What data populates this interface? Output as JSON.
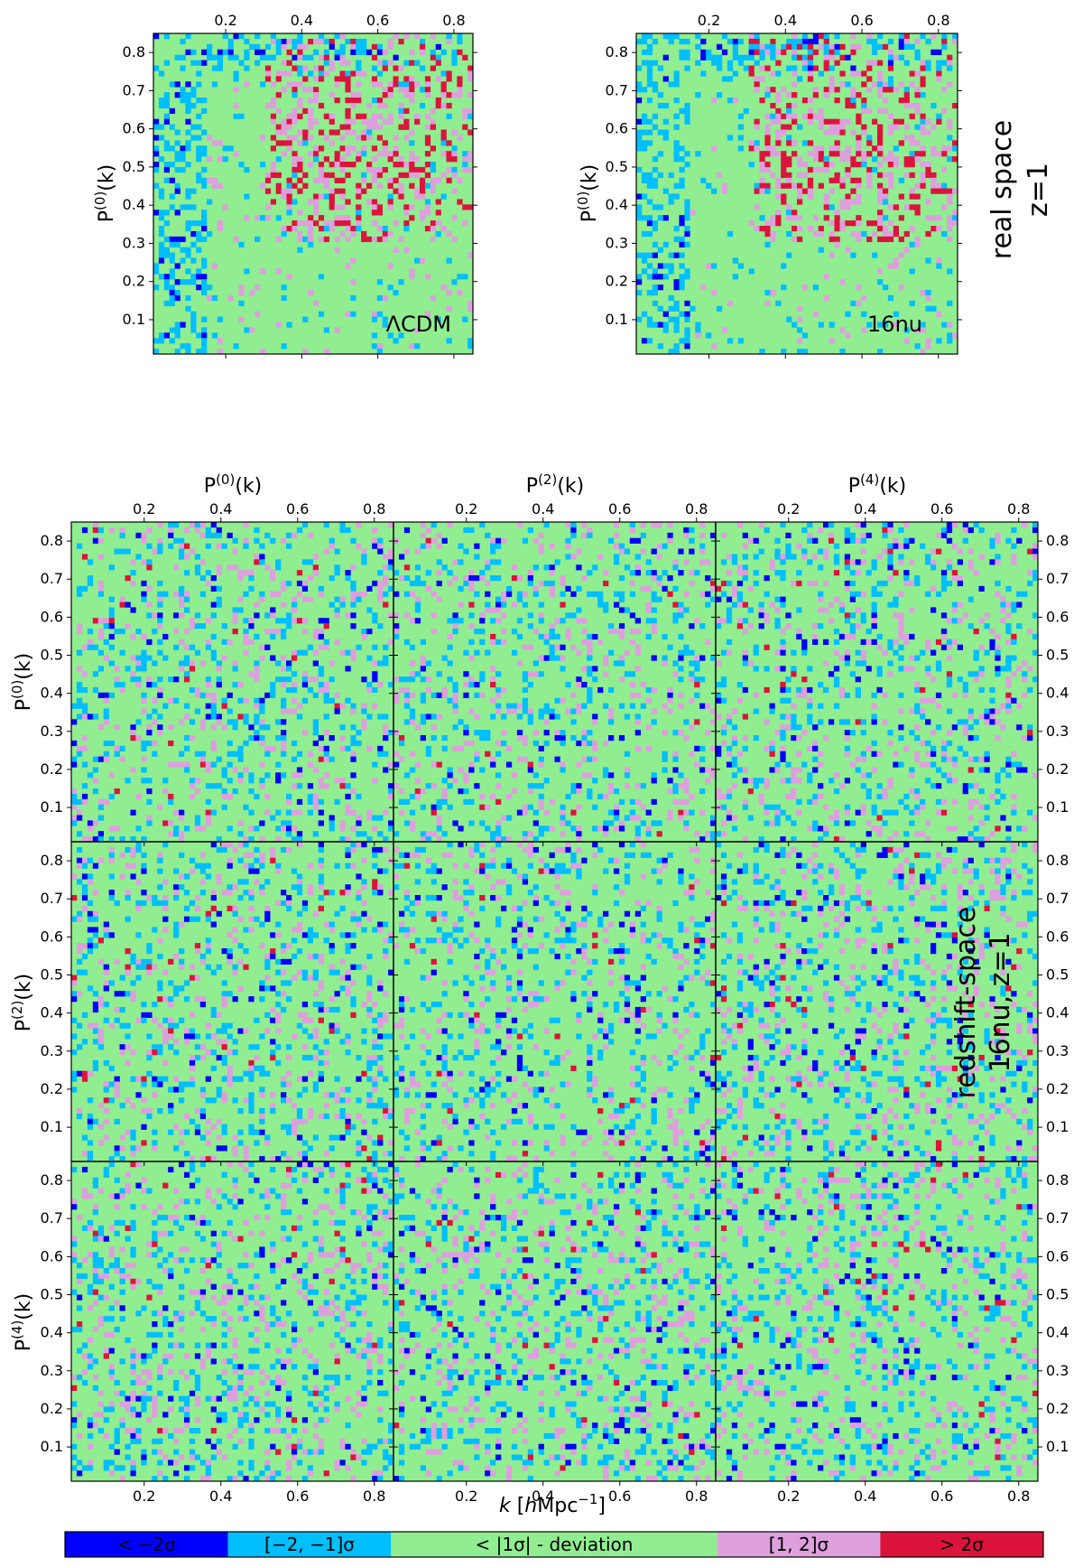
{
  "chart_data": [
    {
      "type": "heatmap",
      "panel": "real-space-lcdm",
      "annotation": "ΛCDM",
      "ylabel": "P^(0)(k)",
      "x_ticks": [
        0.2,
        0.4,
        0.6,
        0.8
      ],
      "y_ticks": [
        0.1,
        0.2,
        0.3,
        0.4,
        0.5,
        0.6,
        0.7,
        0.8
      ],
      "xlim": [
        0.01,
        0.85
      ],
      "ylim": [
        0.85,
        0.01
      ],
      "hot_region": {
        "x_range": [
          0.3,
          0.85
        ],
        "y_range": [
          0.3,
          0.85
        ],
        "peak": [
          0.55,
          0.52
        ]
      }
    },
    {
      "type": "heatmap",
      "panel": "real-space-16nu",
      "annotation": "16nu",
      "ylabel": "P^(0)(k)",
      "x_ticks": [
        0.2,
        0.4,
        0.6,
        0.8
      ],
      "y_ticks": [
        0.1,
        0.2,
        0.3,
        0.4,
        0.5,
        0.6,
        0.7,
        0.8
      ],
      "xlim": [
        0.01,
        0.85
      ],
      "ylim": [
        0.85,
        0.01
      ],
      "hot_region": {
        "x_range": [
          0.3,
          0.85
        ],
        "y_range": [
          0.3,
          0.85
        ],
        "peak": [
          0.55,
          0.52
        ]
      }
    },
    {
      "type": "heatmap",
      "panel": "redshift-space-grid",
      "column_labels": [
        "P^(0)(k)",
        "P^(2)(k)",
        "P^(4)(k)"
      ],
      "row_labels": [
        "P^(0)(k)",
        "P^(2)(k)",
        "P^(4)(k)"
      ],
      "xlabel": "k [hMpc^-1]",
      "x_ticks": [
        0.2,
        0.4,
        0.6,
        0.8
      ],
      "y_ticks": [
        0.1,
        0.2,
        0.3,
        0.4,
        0.5,
        0.6,
        0.7,
        0.8
      ],
      "xlim": [
        0.01,
        0.85
      ],
      "ylim": [
        0.85,
        0.01
      ],
      "pattern": "noise"
    }
  ],
  "side_labels": {
    "real_line1": "real space",
    "real_line2": "z=1",
    "redshift_line1": "redshift-space",
    "redshift_line2": "16nu, z=1"
  },
  "colorbar": {
    "categories": [
      {
        "label": "< −2σ",
        "color": "#0000ff"
      },
      {
        "label": "[−2, −1]σ",
        "color": "#00bfff"
      },
      {
        "label": "< |1σ| - deviation",
        "color": "#90ee90"
      },
      {
        "label": "[1, 2]σ",
        "color": "#dda0dd"
      },
      {
        "label": "> 2σ",
        "color": "#dc143c"
      }
    ]
  }
}
